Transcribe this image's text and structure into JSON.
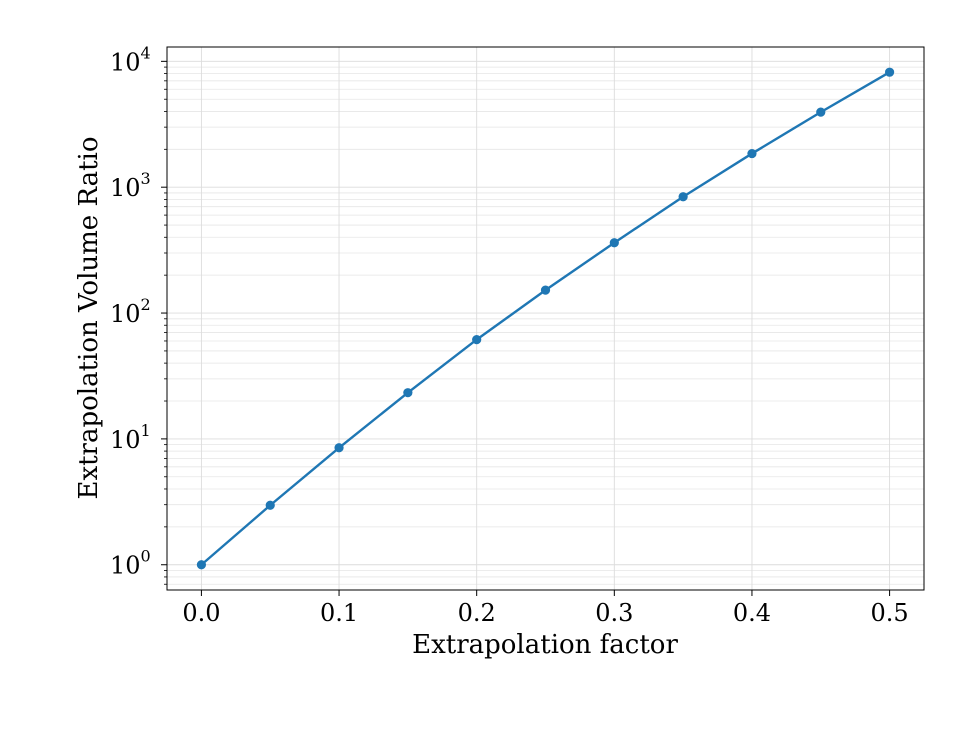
{
  "chart_data": {
    "type": "line",
    "title": "",
    "xlabel": "Extrapolation factor",
    "ylabel": "Extrapolation Volume Ratio",
    "xlim": [
      -0.025,
      0.525
    ],
    "ylim": [
      0.63,
      13000
    ],
    "yscale": "log",
    "grid": true,
    "x_ticks": [
      0.0,
      0.1,
      0.2,
      0.3,
      0.4,
      0.5
    ],
    "x_tick_labels": [
      "0.0",
      "0.1",
      "0.2",
      "0.3",
      "0.4",
      "0.5"
    ],
    "y_ticks": [
      1,
      10,
      100,
      1000,
      10000
    ],
    "y_tick_labels": [
      {
        "base": "10",
        "exp": "0"
      },
      {
        "base": "10",
        "exp": "1"
      },
      {
        "base": "10",
        "exp": "2"
      },
      {
        "base": "10",
        "exp": "3"
      },
      {
        "base": "10",
        "exp": "4"
      }
    ],
    "series": [
      {
        "color": "#1f77b4",
        "marker": "circle",
        "x": [
          0.0,
          0.05,
          0.1,
          0.15,
          0.2,
          0.25,
          0.3,
          0.35,
          0.4,
          0.45,
          0.5
        ],
        "y": [
          1.0,
          2.97,
          8.5,
          23.3,
          61.5,
          152,
          362,
          840,
          1850,
          3950,
          8200
        ]
      }
    ]
  }
}
